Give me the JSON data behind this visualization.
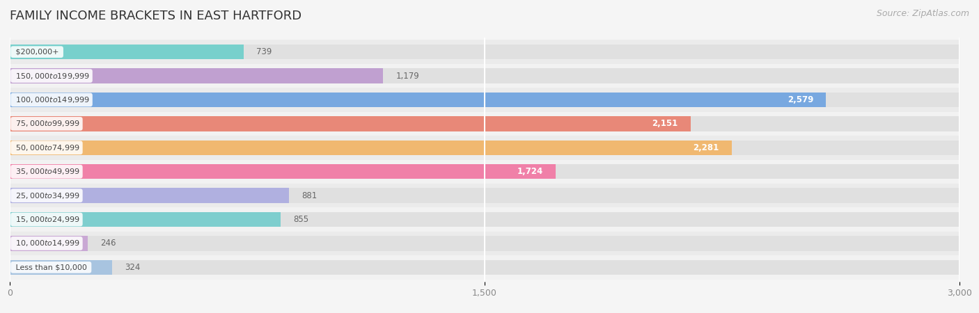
{
  "title": "FAMILY INCOME BRACKETS IN EAST HARTFORD",
  "source": "Source: ZipAtlas.com",
  "categories": [
    "Less than $10,000",
    "$10,000 to $14,999",
    "$15,000 to $24,999",
    "$25,000 to $34,999",
    "$35,000 to $49,999",
    "$50,000 to $74,999",
    "$75,000 to $99,999",
    "$100,000 to $149,999",
    "$150,000 to $199,999",
    "$200,000+"
  ],
  "values": [
    324,
    246,
    855,
    881,
    1724,
    2281,
    2151,
    2579,
    1179,
    739
  ],
  "bar_colors": [
    "#a8c4e0",
    "#c9a8d4",
    "#7ecece",
    "#b0b0e0",
    "#f080a8",
    "#f0b870",
    "#e88878",
    "#78a8e0",
    "#c0a0d0",
    "#78d0cc"
  ],
  "xlim": [
    0,
    3000
  ],
  "xticks": [
    0,
    1500,
    3000
  ],
  "background_color": "#f5f5f5",
  "bar_background_color": "#e0e0e0",
  "title_fontsize": 13,
  "source_fontsize": 9,
  "bar_height": 0.62
}
